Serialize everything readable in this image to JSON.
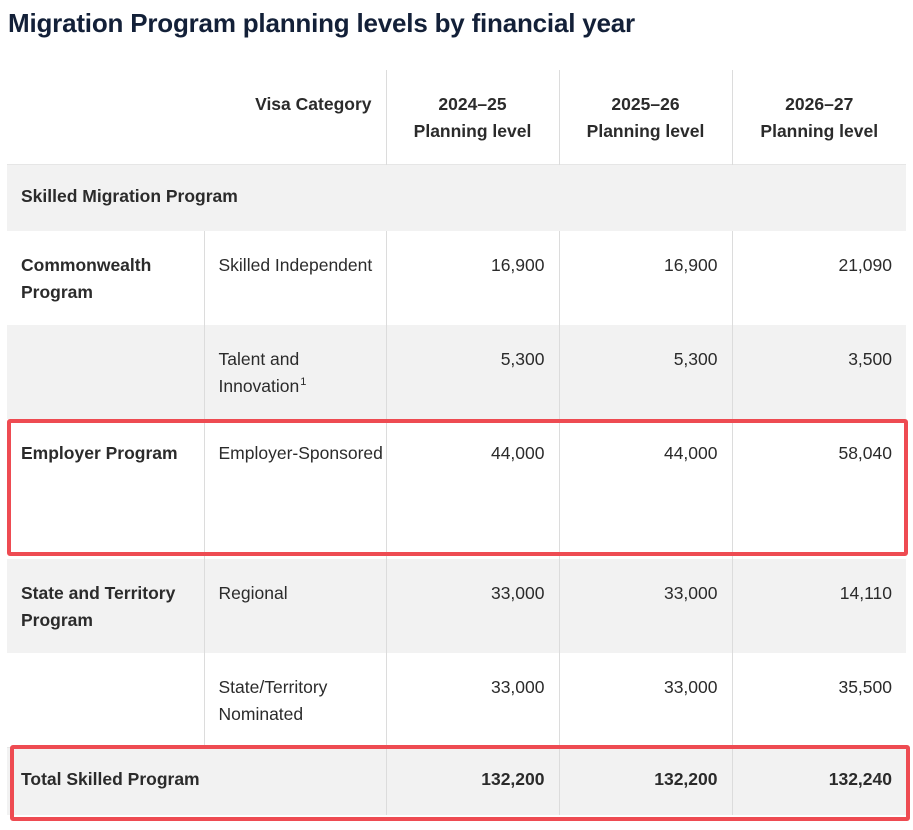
{
  "title": "Migration Program planning levels by financial year",
  "table": {
    "headers": {
      "visa_category": "Visa Category",
      "years": [
        {
          "year": "2024–25",
          "label": "Planning level"
        },
        {
          "year": "2025–26",
          "label": "Planning level"
        },
        {
          "year": "2026–27",
          "label": "Planning level"
        }
      ]
    },
    "section": "Skilled Migration Program",
    "rows": [
      {
        "program": "Commonwealth Program",
        "category": "Skilled Independent",
        "footnote": "",
        "values": [
          "16,900",
          "16,900",
          "21,090"
        ]
      },
      {
        "program": "",
        "category": "Talent and Innovation",
        "footnote": "1",
        "values": [
          "5,300",
          "5,300",
          "3,500"
        ]
      },
      {
        "program": "Employer Program",
        "category": "Employer-Sponsored",
        "footnote": "",
        "values": [
          "44,000",
          "44,000",
          "58,040"
        ]
      },
      {
        "program": "State and Territory Program",
        "category": "Regional",
        "footnote": "",
        "values": [
          "33,000",
          "33,000",
          "14,110"
        ]
      },
      {
        "program": "",
        "category": "State/Territory Nominated",
        "footnote": "",
        "values": [
          "33,000",
          "33,000",
          "35,500"
        ]
      }
    ],
    "total": {
      "label": "Total Skilled Program",
      "values": [
        "132,200",
        "132,200",
        "132,240"
      ]
    }
  },
  "colors": {
    "highlight": "#ee4b52",
    "row_shade": "#f2f2f2",
    "title": "#132038"
  }
}
